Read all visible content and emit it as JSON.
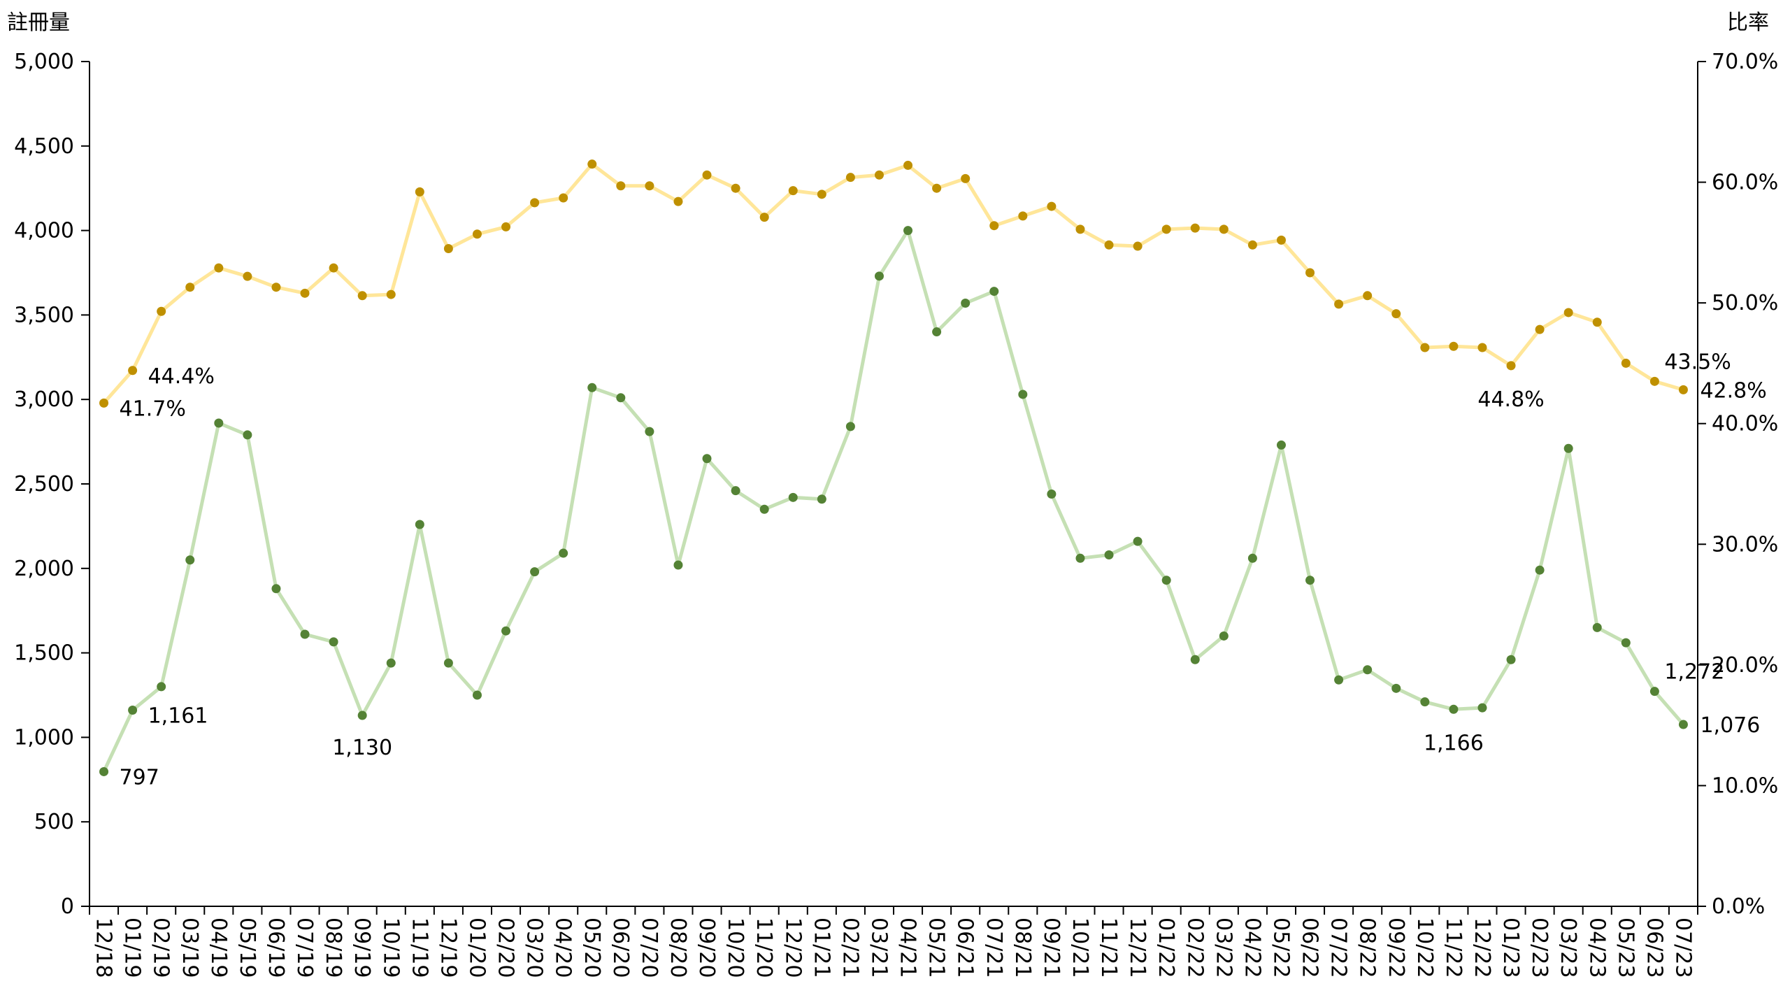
{
  "chart_data": {
    "type": "line",
    "left_axis_title": "註冊量",
    "right_axis_title": "比率",
    "left_ylim": [
      0,
      5000
    ],
    "left_ticks": [
      "0",
      "500",
      "1,000",
      "1,500",
      "2,000",
      "2,500",
      "3,000",
      "3,500",
      "4,000",
      "4,500",
      "5,000"
    ],
    "right_ylim": [
      0,
      70
    ],
    "right_ticks": [
      "0.0%",
      "10.0%",
      "20.0%",
      "30.0%",
      "40.0%",
      "50.0%",
      "60.0%",
      "70.0%"
    ],
    "categories": [
      "12/18",
      "01/19",
      "02/19",
      "03/19",
      "04/19",
      "05/19",
      "06/19",
      "07/19",
      "08/19",
      "09/19",
      "10/19",
      "11/19",
      "12/19",
      "01/20",
      "02/20",
      "03/20",
      "04/20",
      "05/20",
      "06/20",
      "07/20",
      "08/20",
      "09/20",
      "10/20",
      "11/20",
      "12/20",
      "01/21",
      "02/21",
      "03/21",
      "04/21",
      "05/21",
      "06/21",
      "07/21",
      "08/21",
      "09/21",
      "10/21",
      "11/21",
      "12/21",
      "01/22",
      "02/22",
      "03/22",
      "04/22",
      "05/22",
      "06/22",
      "07/22",
      "08/22",
      "09/22",
      "10/22",
      "11/22",
      "12/22",
      "01/23",
      "02/23",
      "03/23",
      "04/23",
      "05/23",
      "06/23",
      "07/23"
    ],
    "series": [
      {
        "axis": "left",
        "line_color": "#c5e0b4",
        "marker_color": "#548235",
        "values": [
          797,
          1161,
          1300,
          2050,
          2860,
          2790,
          1880,
          1610,
          1565,
          1130,
          1440,
          2260,
          1440,
          1250,
          1630,
          1980,
          2090,
          3070,
          3010,
          2810,
          2020,
          2650,
          2460,
          2350,
          2420,
          2410,
          2840,
          3730,
          4000,
          3400,
          3570,
          3640,
          3030,
          2440,
          2060,
          2080,
          2160,
          1930,
          1460,
          1600,
          2060,
          2730,
          1930,
          1340,
          1400,
          1290,
          1210,
          1166,
          1175,
          1460,
          1990,
          2710,
          1650,
          1560,
          1272,
          1076
        ],
        "labels": [
          {
            "i": 0,
            "text": "797"
          },
          {
            "i": 1,
            "text": "1,161"
          },
          {
            "i": 9,
            "text": "1,130"
          },
          {
            "i": 47,
            "text": "1,166"
          },
          {
            "i": 54,
            "text": "1,272"
          },
          {
            "i": 55,
            "text": "1,076"
          }
        ]
      },
      {
        "axis": "right",
        "line_color": "#ffe699",
        "marker_color": "#bf9000",
        "values": [
          41.7,
          44.4,
          49.3,
          51.3,
          52.9,
          52.2,
          51.3,
          50.8,
          52.9,
          50.6,
          50.7,
          59.2,
          54.5,
          55.7,
          56.3,
          58.3,
          58.7,
          61.5,
          59.7,
          59.7,
          58.4,
          60.6,
          59.5,
          57.1,
          59.3,
          59.0,
          60.4,
          60.6,
          61.4,
          59.5,
          60.3,
          56.4,
          57.2,
          58.0,
          56.1,
          54.8,
          54.7,
          56.1,
          56.2,
          56.1,
          54.8,
          55.2,
          52.5,
          49.9,
          50.6,
          49.1,
          46.3,
          46.4,
          46.3,
          44.8,
          47.8,
          49.2,
          48.4,
          45.0,
          43.5,
          42.8
        ],
        "labels": [
          {
            "i": 0,
            "text": "41.7%"
          },
          {
            "i": 1,
            "text": "44.4%"
          },
          {
            "i": 49,
            "text": "44.8%"
          },
          {
            "i": 54,
            "text": "43.5%"
          },
          {
            "i": 55,
            "text": "42.8%"
          }
        ]
      }
    ]
  }
}
